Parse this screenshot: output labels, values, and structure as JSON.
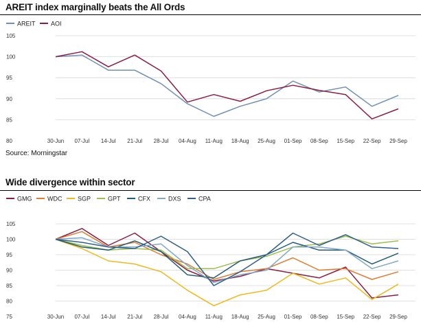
{
  "source_note": "Source: Morningstar",
  "chart_data": [
    {
      "type": "line",
      "title": "AREIT index marginally beats the All Ords",
      "categories": [
        "30-Jun",
        "07-Jul",
        "14-Jul",
        "21-Jul",
        "28-Jul",
        "04-Aug",
        "11-Aug",
        "18-Aug",
        "25-Aug",
        "01-Sep",
        "08-Sep",
        "15-Sep",
        "22-Sep",
        "29-Sep"
      ],
      "ylim": [
        80,
        105
      ],
      "yticks": [
        80,
        85,
        90,
        95,
        100,
        105
      ],
      "grid": true,
      "legend_position": "top-left",
      "series": [
        {
          "name": "AREIT",
          "color": "#6f8fb8",
          "values": [
            100,
            100.4,
            96.8,
            96.8,
            93.6,
            88.8,
            85.8,
            88.2,
            90.0,
            94.2,
            91.6,
            92.8,
            88.2,
            90.8
          ]
        },
        {
          "name": "AOI",
          "color": "#8c1d40",
          "values": [
            100,
            101.2,
            97.6,
            100.4,
            96.6,
            89.2,
            91.0,
            89.4,
            91.9,
            93.2,
            92.0,
            91.0,
            85.2,
            87.6
          ]
        }
      ]
    },
    {
      "type": "line",
      "title": "Wide divergence within sector",
      "categories": [
        "30-Jun",
        "07-Jul",
        "14-Jul",
        "21-Jul",
        "28-Jul",
        "04-Aug",
        "11-Aug",
        "18-Aug",
        "25-Aug",
        "01-Sep",
        "08-Sep",
        "15-Sep",
        "22-Sep",
        "29-Sep"
      ],
      "ylim": [
        75,
        105
      ],
      "yticks": [
        75,
        80,
        85,
        90,
        95,
        100,
        105
      ],
      "grid": true,
      "legend_position": "top-left",
      "series": [
        {
          "name": "GMG",
          "color": "#8c1d40",
          "values": [
            100,
            103.5,
            98,
            102,
            96,
            90,
            86.5,
            88,
            90.5,
            89,
            87.5,
            91,
            81,
            82
          ]
        },
        {
          "name": "WDC",
          "color": "#e07b30",
          "values": [
            100,
            102.5,
            97.5,
            99,
            95,
            92,
            87,
            89.5,
            90.5,
            94,
            90,
            90.5,
            87,
            89.5
          ]
        },
        {
          "name": "SGP",
          "color": "#f0b81a",
          "values": [
            100,
            97,
            93,
            92,
            89.5,
            83.5,
            78.5,
            82,
            83.5,
            89,
            85.5,
            87.5,
            80.5,
            85.5
          ]
        },
        {
          "name": "GPT",
          "color": "#9bbf4a",
          "values": [
            100,
            98,
            96.5,
            97,
            96.5,
            90.5,
            90.5,
            93,
            94.5,
            97.5,
            98.5,
            101,
            98.5,
            99.5
          ]
        },
        {
          "name": "CFX",
          "color": "#1f5c78",
          "values": [
            100,
            97.5,
            96.5,
            99.5,
            96,
            88.5,
            87.5,
            93,
            95,
            99,
            96.5,
            96.5,
            92,
            95.5
          ]
        },
        {
          "name": "DXS",
          "color": "#7fa7c9",
          "values": [
            100,
            100.5,
            97.5,
            97.5,
            98.5,
            91.5,
            86,
            88.5,
            90,
            97.5,
            97.5,
            96.5,
            90.5,
            93
          ]
        },
        {
          "name": "CPA",
          "color": "#2d5f8b",
          "values": [
            100,
            99,
            97.5,
            97,
            101,
            96,
            85,
            89.5,
            95,
            102,
            98,
            101.5,
            97.5,
            97
          ]
        }
      ]
    }
  ]
}
